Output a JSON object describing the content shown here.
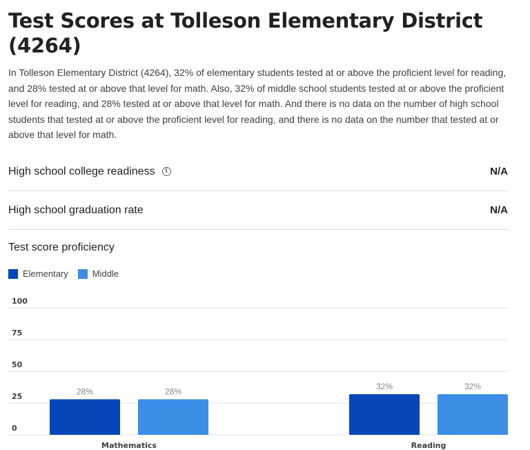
{
  "page": {
    "title": "Test Scores at Tolleson Elementary District (4264)",
    "summary": "In Tolleson Elementary District (4264), 32% of elementary students tested at or above the proficient level for reading, and 28% tested at or above that level for math. Also, 32% of middle school students tested at or above the proficient level for reading, and 28% tested at or above that level for math. And there is no data on the number of high school students that tested at or above the proficient level for reading, and there is no data on the number that tested at or above that level for math."
  },
  "metrics": [
    {
      "label": "High school college readiness",
      "value": "N/A",
      "icon": "info-icon"
    },
    {
      "label": "High school graduation rate",
      "value": "N/A"
    }
  ],
  "section": {
    "title": "Test score proficiency"
  },
  "colors": {
    "elementary": "#0646b8",
    "middle": "#3a8ee6"
  },
  "chart_data": {
    "type": "bar",
    "categories": [
      "Mathematics",
      "Reading"
    ],
    "series": [
      {
        "name": "Elementary",
        "values": [
          28,
          32
        ],
        "labels": [
          "28%",
          "32%"
        ]
      },
      {
        "name": "Middle",
        "values": [
          28,
          32
        ],
        "labels": [
          "28%",
          "32%"
        ]
      }
    ],
    "yticks": [
      "100",
      "75",
      "50",
      "25",
      "0"
    ],
    "ylim": [
      0,
      100
    ],
    "grid": true,
    "legend": "top-left"
  }
}
